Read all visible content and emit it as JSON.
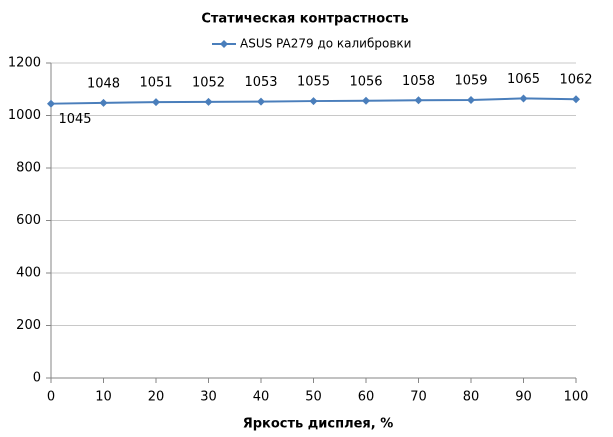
{
  "chart_data": {
    "type": "line",
    "title": "Статическая контрастность",
    "x_label": "Яркость дисплея, %",
    "x": [
      0,
      10,
      20,
      30,
      40,
      50,
      60,
      70,
      80,
      90,
      100
    ],
    "series": [
      {
        "name": "ASUS PA279 до калибровки",
        "color": "#4a7ebb",
        "values": [
          1045,
          1048,
          1051,
          1052,
          1053,
          1055,
          1056,
          1058,
          1059,
          1065,
          1062
        ]
      }
    ],
    "xlim": [
      0,
      100
    ],
    "xticks": [
      0,
      10,
      20,
      30,
      40,
      50,
      60,
      70,
      80,
      90,
      100
    ],
    "ylim": [
      0,
      1200
    ],
    "yticks": [
      0,
      200,
      400,
      600,
      800,
      1000,
      1200
    ],
    "grid": true,
    "legend": "top"
  }
}
